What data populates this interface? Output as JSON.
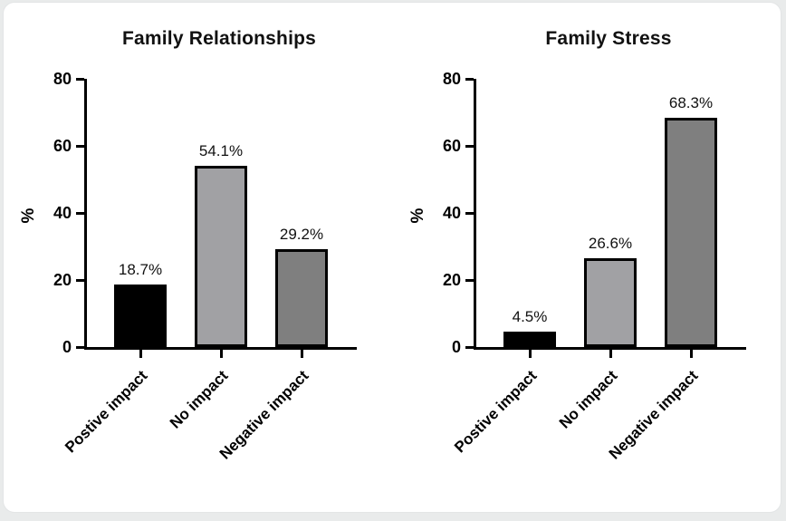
{
  "card": {
    "background": "#ffffff",
    "border_color": "#e3e5e6",
    "page_background": "#e9ebeb",
    "axis_color": "#000000"
  },
  "chart_data": [
    {
      "type": "bar",
      "title": "Family Relationships",
      "xlabel": "",
      "ylabel": "%",
      "ylim": [
        0,
        80
      ],
      "yticks": [
        0,
        20,
        40,
        60,
        80
      ],
      "categories": [
        "Postive impact",
        "No impact",
        "Negative impact"
      ],
      "values": [
        18.7,
        54.1,
        29.2
      ],
      "value_labels": [
        "18.7%",
        "54.1%",
        "29.2%"
      ],
      "bar_colors": [
        "#000000",
        "#a1a1a4",
        "#7f7f7f"
      ],
      "bar_outline": "#000000",
      "grid": false,
      "legend": "none"
    },
    {
      "type": "bar",
      "title": "Family Stress",
      "xlabel": "",
      "ylabel": "%",
      "ylim": [
        0,
        80
      ],
      "yticks": [
        0,
        20,
        40,
        60,
        80
      ],
      "categories": [
        "Postive impact",
        "No impact",
        "Negative impact"
      ],
      "values": [
        4.5,
        26.6,
        68.3
      ],
      "value_labels": [
        "4.5%",
        "26.6%",
        "68.3%"
      ],
      "bar_colors": [
        "#000000",
        "#a1a1a4",
        "#7f7f7f"
      ],
      "bar_outline": "#000000",
      "grid": false,
      "legend": "none"
    }
  ]
}
